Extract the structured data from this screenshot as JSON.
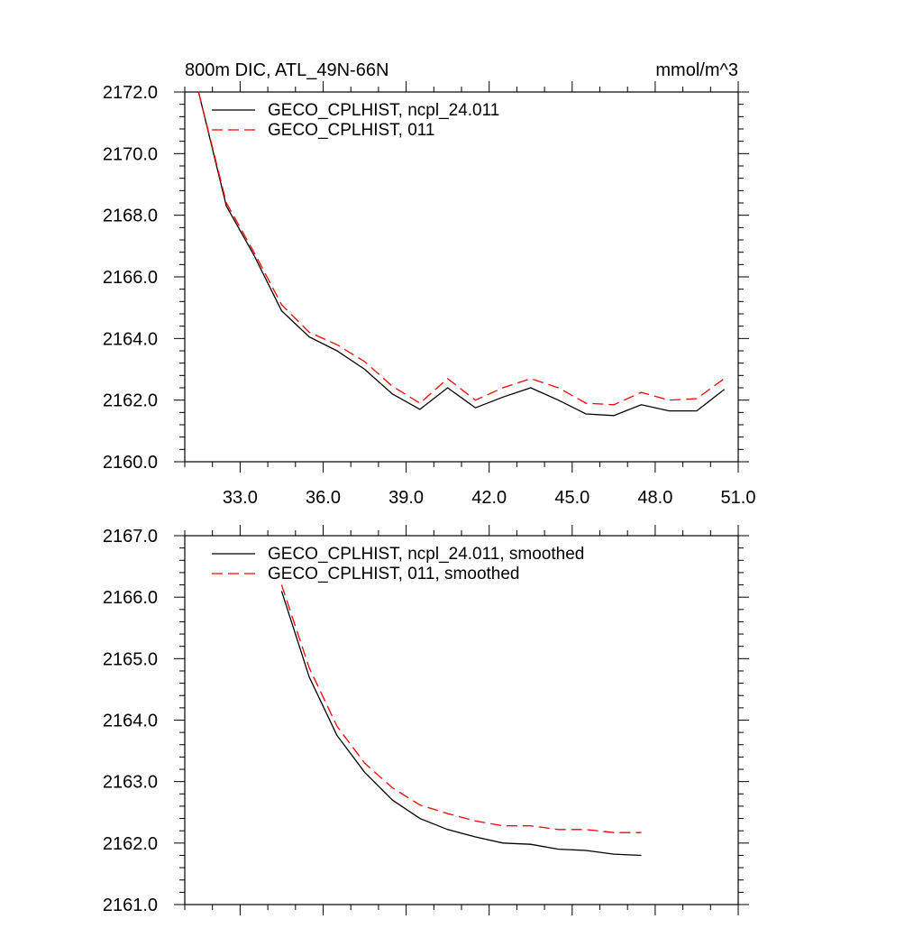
{
  "chart_data": [
    {
      "type": "line",
      "title": "800m DIC, ATL_49N-66N",
      "units": "mmol/m^3",
      "xlabel": "",
      "ylabel": "",
      "xlim": [
        31.0,
        51.0
      ],
      "ylim": [
        2160.0,
        2172.0
      ],
      "x_ticks": [
        "33.0",
        "36.0",
        "39.0",
        "42.0",
        "45.0",
        "48.0",
        "51.0"
      ],
      "y_ticks": [
        "2160.0",
        "2162.0",
        "2164.0",
        "2166.0",
        "2168.0",
        "2170.0",
        "2172.0"
      ],
      "grid": false,
      "legend_position": "top-left",
      "x": [
        31.5,
        32.5,
        33.5,
        34.5,
        35.5,
        36.5,
        37.5,
        38.5,
        39.5,
        40.5,
        41.5,
        42.5,
        43.5,
        44.5,
        45.5,
        46.5,
        47.5,
        48.5,
        49.5,
        50.5
      ],
      "series": [
        {
          "name": "GECO_CPLHIST, ncpl_24.011",
          "color": "#000000",
          "dash": "solid",
          "values": [
            2172.0,
            2168.3,
            2166.7,
            2164.9,
            2164.05,
            2163.6,
            2163.0,
            2162.2,
            2161.7,
            2162.4,
            2161.75,
            2162.1,
            2162.4,
            2162.0,
            2161.55,
            2161.5,
            2161.85,
            2161.65,
            2161.65,
            2162.35
          ]
        },
        {
          "name": "GECO_CPLHIST, 011",
          "color": "#ff0000",
          "dash": "dashed",
          "values": [
            2172.0,
            2168.4,
            2166.8,
            2165.1,
            2164.2,
            2163.8,
            2163.25,
            2162.45,
            2161.9,
            2162.7,
            2162.0,
            2162.4,
            2162.7,
            2162.4,
            2161.9,
            2161.85,
            2162.25,
            2162.0,
            2162.05,
            2162.7
          ]
        }
      ]
    },
    {
      "type": "line",
      "title": "",
      "xlabel": "",
      "ylabel": "",
      "xlim": [
        31.0,
        51.0
      ],
      "ylim": [
        2161.0,
        2167.0
      ],
      "x_ticks": [],
      "y_ticks": [
        "2161.0",
        "2162.0",
        "2163.0",
        "2164.0",
        "2165.0",
        "2166.0",
        "2167.0"
      ],
      "grid": false,
      "legend_position": "top-left",
      "x": [
        34.5,
        35.5,
        36.5,
        37.5,
        38.5,
        39.5,
        40.5,
        41.5,
        42.5,
        43.5,
        44.5,
        45.5,
        46.5,
        47.5
      ],
      "series": [
        {
          "name": "GECO_CPLHIST, ncpl_24.011, smoothed",
          "color": "#000000",
          "dash": "solid",
          "values": [
            2166.1,
            2164.7,
            2163.75,
            2163.15,
            2162.7,
            2162.4,
            2162.22,
            2162.1,
            2162.0,
            2161.98,
            2161.9,
            2161.88,
            2161.82,
            2161.8
          ]
        },
        {
          "name": "GECO_CPLHIST, 011, smoothed",
          "color": "#ff0000",
          "dash": "dashed",
          "values": [
            2166.2,
            2164.85,
            2163.9,
            2163.3,
            2162.9,
            2162.62,
            2162.48,
            2162.36,
            2162.28,
            2162.28,
            2162.22,
            2162.22,
            2162.17,
            2162.17
          ]
        }
      ]
    }
  ]
}
